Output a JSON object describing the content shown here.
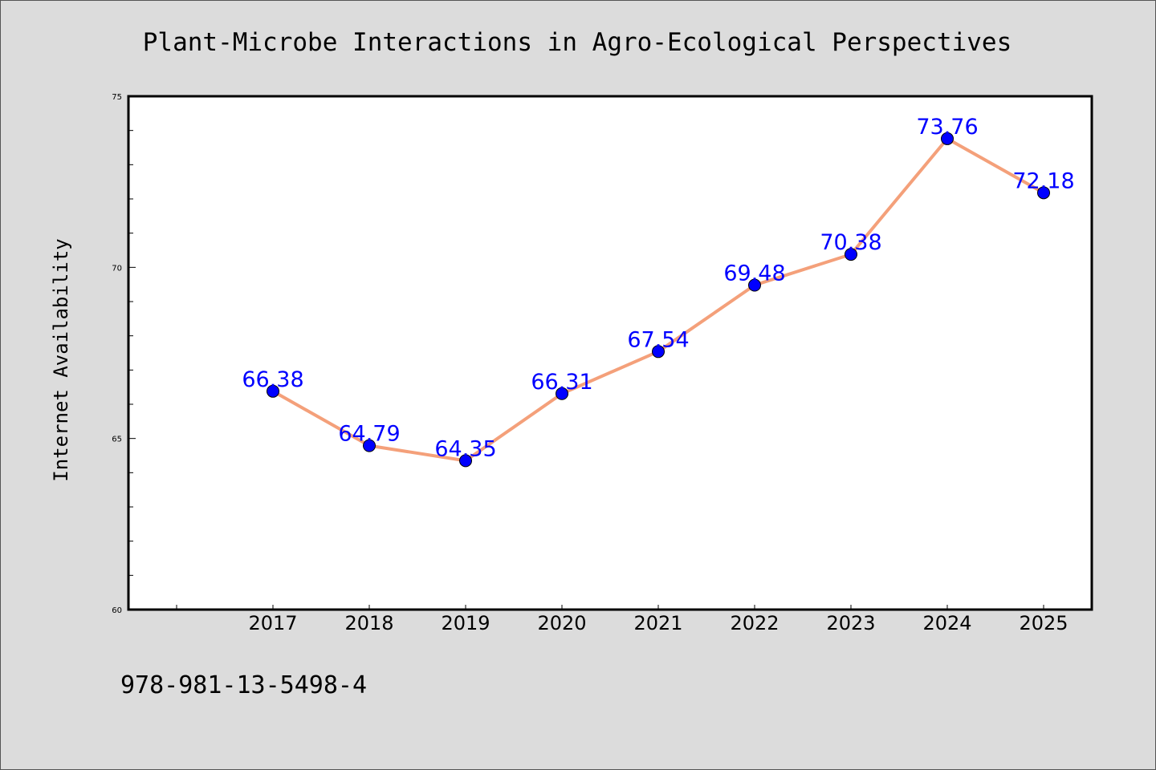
{
  "chart_data": {
    "type": "line",
    "title": "Plant-Microbe Interactions in Agro-Ecological Perspectives",
    "xlabel": "",
    "ylabel": "Internet Availability",
    "categories": [
      "2017",
      "2018",
      "2019",
      "2020",
      "2021",
      "2022",
      "2023",
      "2024",
      "2025"
    ],
    "values": [
      66.38,
      64.79,
      64.35,
      66.31,
      67.54,
      69.48,
      70.38,
      73.76,
      72.18
    ],
    "data_labels": [
      "66.38",
      "64.79",
      "64.35",
      "66.31",
      "67.54",
      "69.48",
      "70.38",
      "73.76",
      "72.18"
    ],
    "ylim": [
      60,
      75
    ],
    "yticks": [
      "60",
      "65",
      "70",
      "75"
    ],
    "grid": false,
    "legend": "none",
    "colors": {
      "line": "#f4a07a",
      "marker": "#0000ff",
      "label": "#0000ff",
      "background": "#dcdcdc",
      "plot": "#ffffff"
    }
  },
  "footer": {
    "isbn": "978-981-13-5498-4"
  }
}
